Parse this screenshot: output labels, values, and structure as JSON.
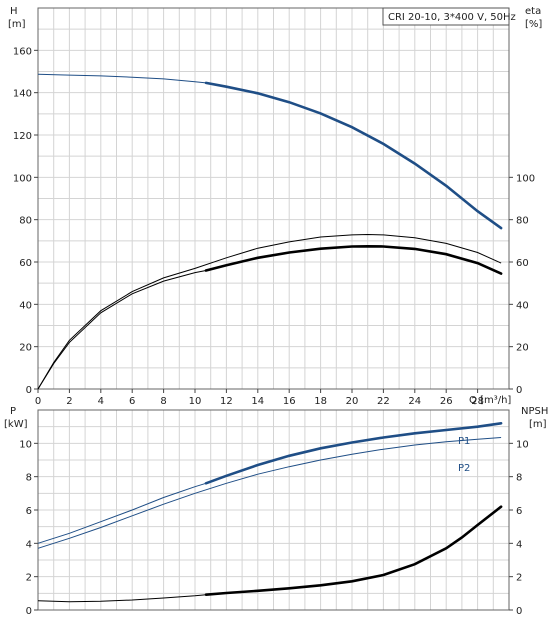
{
  "chart_data": [
    {
      "type": "line",
      "title": "CRI 20-10, 3*400 V, 50Hz",
      "x_unit_label": "Q [m³/h]",
      "x_ticks": [
        0,
        2,
        4,
        6,
        8,
        10,
        12,
        14,
        16,
        18,
        20,
        22,
        24,
        26,
        28
      ],
      "xlim": [
        0,
        30
      ],
      "grid": true,
      "left_axis": {
        "label_line1": "H",
        "label_line2": "[m]",
        "ticks": [
          0,
          20,
          40,
          60,
          80,
          100,
          120,
          140,
          160
        ],
        "ylim": [
          0,
          180
        ]
      },
      "right_axis": {
        "label_line1": "eta",
        "label_line2": "[%]",
        "ticks": [
          0,
          20,
          40,
          60,
          80,
          100
        ],
        "ylim": [
          0,
          180
        ]
      },
      "series": [
        {
          "role": "H",
          "axis": "left",
          "color": "#1f4e86",
          "thin_until_x": 10.7,
          "x": [
            0,
            2,
            4,
            6,
            8,
            10,
            10.7,
            12,
            14,
            16,
            18,
            20,
            22,
            24,
            26,
            28,
            29.5
          ],
          "y": [
            148.7,
            148.3,
            147.9,
            147.3,
            146.5,
            145.2,
            144.6,
            142.8,
            139.7,
            135.5,
            130.2,
            123.7,
            115.8,
            106.5,
            96,
            84,
            76
          ]
        },
        {
          "role": "eta",
          "axis": "right",
          "color": "#000000",
          "thin_until_x": 10.7,
          "x": [
            0,
            1,
            2,
            4,
            6,
            8,
            10,
            10.7,
            12,
            14,
            16,
            18,
            20,
            21,
            22,
            24,
            26,
            28,
            29.5
          ],
          "y": [
            0,
            12,
            22,
            36,
            45,
            51,
            55,
            56,
            58.5,
            62,
            64.5,
            66.3,
            67.3,
            67.4,
            67.3,
            66.2,
            63.7,
            59.5,
            54.5
          ]
        },
        {
          "role": "eta-thin",
          "axis": "right",
          "color": "#000000",
          "thin_until_x": 99,
          "x": [
            0,
            1,
            2,
            4,
            6,
            8,
            10,
            12,
            14,
            16,
            18,
            20,
            21,
            22,
            24,
            26,
            28,
            29.5
          ],
          "y": [
            0,
            12.5,
            23,
            37,
            46,
            52.5,
            57,
            62,
            66.5,
            69.5,
            71.8,
            72.8,
            73,
            72.8,
            71.5,
            68.8,
            64.5,
            59.5
          ]
        }
      ]
    },
    {
      "type": "line",
      "x_unit_label": "",
      "xlim": [
        0,
        30
      ],
      "grid": true,
      "left_axis": {
        "label_line1": "P",
        "label_line2": "[kW]",
        "ticks": [
          0,
          2,
          4,
          6,
          8,
          10
        ],
        "ylim": [
          0,
          12
        ]
      },
      "right_axis": {
        "label_line1": "NPSH",
        "label_line2": "[m]",
        "ticks": [
          0,
          2,
          4,
          6,
          8,
          10
        ],
        "ylim": [
          0,
          12
        ]
      },
      "series": [
        {
          "name": "P1",
          "axis": "left",
          "color": "#1f4e86",
          "thin_until_x": 10.7,
          "x": [
            0,
            2,
            4,
            6,
            8,
            10,
            10.7,
            12,
            14,
            16,
            18,
            20,
            22,
            24,
            26,
            28,
            29.5
          ],
          "y": [
            4.0,
            4.6,
            5.3,
            6.0,
            6.75,
            7.4,
            7.6,
            8.05,
            8.7,
            9.25,
            9.7,
            10.05,
            10.35,
            10.6,
            10.8,
            11.0,
            11.2
          ]
        },
        {
          "name": "P2",
          "axis": "left",
          "color": "#1f4e86",
          "thin_until_x": 99,
          "x": [
            0,
            2,
            4,
            6,
            8,
            10,
            12,
            14,
            16,
            18,
            20,
            22,
            24,
            26,
            28,
            29.5
          ],
          "y": [
            3.7,
            4.3,
            4.95,
            5.65,
            6.35,
            7.0,
            7.6,
            8.15,
            8.6,
            9.0,
            9.35,
            9.65,
            9.9,
            10.1,
            10.25,
            10.35
          ]
        },
        {
          "role": "NPSH",
          "axis": "right",
          "color": "#000000",
          "thin_until_x": 10.7,
          "x": [
            0,
            2,
            4,
            6,
            8,
            10,
            10.7,
            12,
            14,
            16,
            18,
            20,
            22,
            24,
            26,
            27,
            28,
            29.5
          ],
          "y": [
            0.55,
            0.5,
            0.52,
            0.6,
            0.72,
            0.85,
            0.92,
            1.02,
            1.15,
            1.3,
            1.48,
            1.72,
            2.1,
            2.75,
            3.7,
            4.35,
            5.1,
            6.2
          ]
        }
      ]
    }
  ]
}
